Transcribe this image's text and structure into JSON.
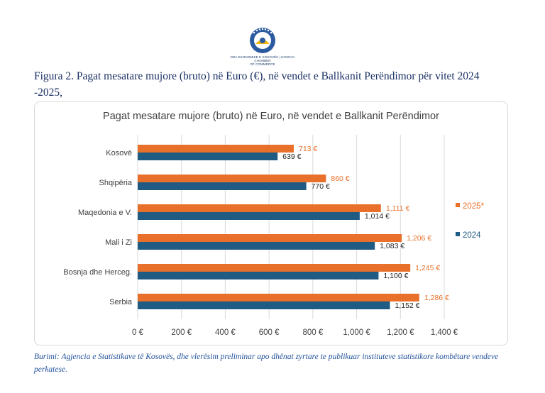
{
  "logo": {
    "icon": "chamber-of-commerce-logo",
    "caption_line1": "ODA EKONOMIKE E KOSOVËS | KOSOVA CHAMBER",
    "caption_line2": "OF COMMERCE"
  },
  "figure_title": "Figura 2. Pagat mesatare mujore (bruto) në Euro (€), në vendet e Ballkanit Perëndimor për vitet 2024 -2025,",
  "source_note": "Burimi: Agjencia e Statistikave të Kosovës, dhe vlerësim preliminar apo dhënat zyrtare te publikuar instituteve statistikore kombëtare vendeve perkatese.",
  "colors": {
    "series_2025": "#e8702a",
    "series_2024": "#1f5b82",
    "grid": "#d9d9d9",
    "axis_text": "#404040"
  },
  "chart_data": {
    "type": "bar",
    "orientation": "horizontal",
    "title": "Pagat mesatare mujore (bruto) në Euro, në vendet e Ballkanit Perëndimor",
    "categories": [
      "Kosovë",
      "Shqipëria",
      "Maqedonia e V.",
      "Mali i Zi",
      "Bosnja dhe Herceg.",
      "Serbia"
    ],
    "series": [
      {
        "name": "2025*",
        "color": "#e8702a",
        "values": [
          713,
          860,
          1111,
          1206,
          1245,
          1286
        ],
        "labels": [
          "713 €",
          "860 €",
          "1,111 €",
          "1,206 €",
          "1,245 €",
          "1,286 €"
        ]
      },
      {
        "name": "2024",
        "color": "#1f5b82",
        "values": [
          639,
          770,
          1014,
          1083,
          1100,
          1152
        ],
        "labels": [
          "639 €",
          "770 €",
          "1,014 €",
          "1,083 €",
          "1,100 €",
          "1,152 €"
        ]
      }
    ],
    "xlim": [
      0,
      1400
    ],
    "x_ticks": [
      0,
      200,
      400,
      600,
      800,
      1000,
      1200,
      1400
    ],
    "x_tick_labels": [
      "0 €",
      "200 €",
      "400 €",
      "600 €",
      "800 €",
      "1,000 €",
      "1,200 €",
      "1,400 €"
    ],
    "grid": true,
    "legend_position": "right"
  }
}
